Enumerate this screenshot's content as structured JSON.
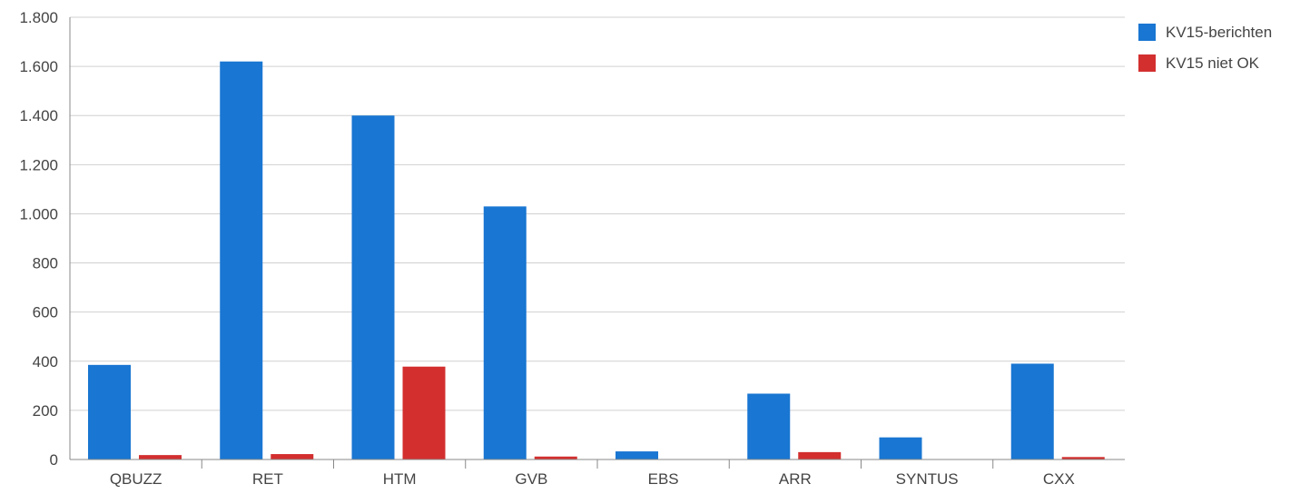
{
  "chart_data": {
    "type": "bar",
    "categories": [
      "QBUZZ",
      "RET",
      "HTM",
      "GVB",
      "EBS",
      "ARR",
      "SYNTUS",
      "CXX"
    ],
    "series": [
      {
        "name": "KV15-berichten",
        "color": "#1976d2",
        "values": [
          385,
          1620,
          1400,
          1030,
          33,
          268,
          90,
          390
        ]
      },
      {
        "name": "KV15 niet OK",
        "color": "#d32f2f",
        "values": [
          18,
          22,
          378,
          12,
          0,
          30,
          0,
          10
        ]
      }
    ],
    "ylim": [
      0,
      1800
    ],
    "yticks": [
      {
        "value": 0,
        "label": "0"
      },
      {
        "value": 200,
        "label": "200"
      },
      {
        "value": 400,
        "label": "400"
      },
      {
        "value": 600,
        "label": "600"
      },
      {
        "value": 800,
        "label": "800"
      },
      {
        "value": 1000,
        "label": "1.000"
      },
      {
        "value": 1200,
        "label": "1.200"
      },
      {
        "value": 1400,
        "label": "1.400"
      },
      {
        "value": 1600,
        "label": "1.600"
      },
      {
        "value": 1800,
        "label": "1.800"
      }
    ],
    "grid": true,
    "legend_position": "top-right",
    "grid_color": "#d0d0d0",
    "axis_color": "#888888",
    "text_color": "#444444"
  }
}
